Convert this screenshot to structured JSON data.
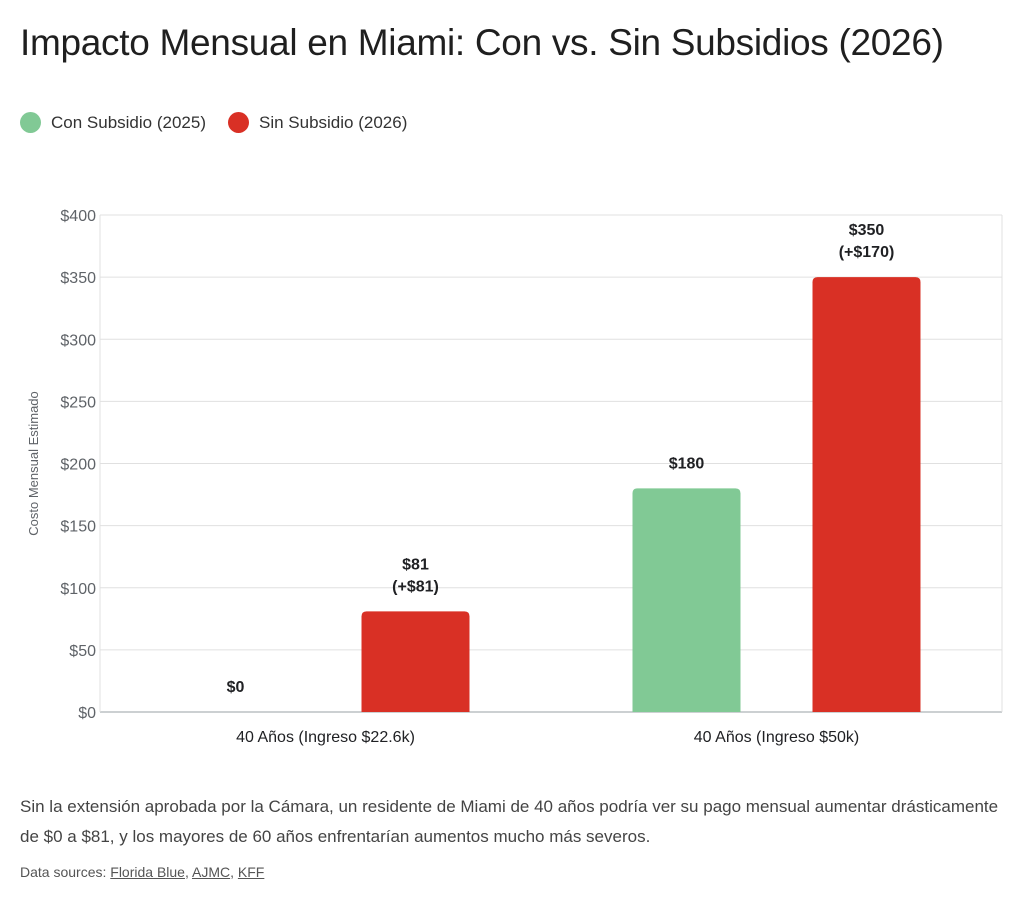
{
  "title": "Impacto Mensual en Miami: Con vs. Sin Subsidios (2026)",
  "note": "Sin la extensión aprobada por la Cámara, un residente de Miami de 40 años podría ver su pago mensual aumentar drásticamente de $0 a $81, y los mayores de 60 años enfrentarían aumentos mucho más severos.",
  "sources": {
    "label": "Data sources:",
    "links": [
      "Florida Blue",
      "AJMC",
      "KFF"
    ]
  },
  "chart_data": {
    "type": "bar",
    "title": "Impacto Mensual en Miami: Con vs. Sin Subsidios (2026)",
    "xlabel": "",
    "ylabel": "Costo Mensual Estimado",
    "ylim": [
      0,
      400
    ],
    "yticks": [
      0,
      50,
      100,
      150,
      200,
      250,
      300,
      350,
      400
    ],
    "ytick_labels": [
      "$0",
      "$50",
      "$100",
      "$150",
      "$200",
      "$250",
      "$300",
      "$350",
      "$400"
    ],
    "grid": true,
    "legend_position": "top-left",
    "categories": [
      "40 Años (Ingreso $22.6k)",
      "40 Años (Ingreso $50k)"
    ],
    "series": [
      {
        "name": "Con Subsidio (2025)",
        "color": "#81c995",
        "values": [
          0,
          180
        ],
        "labels": [
          [
            "$0"
          ],
          [
            "$180"
          ]
        ]
      },
      {
        "name": "Sin Subsidio (2026)",
        "color": "#d93025",
        "values": [
          81,
          350
        ],
        "labels": [
          [
            "$81",
            "(+$81)"
          ],
          [
            "$350",
            "(+$170)"
          ]
        ]
      }
    ]
  }
}
